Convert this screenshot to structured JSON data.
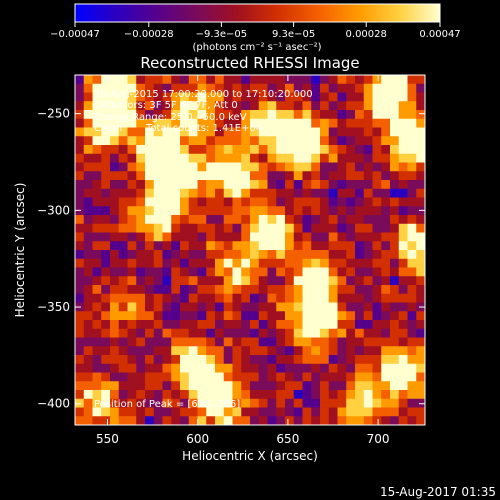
{
  "chart_data": {
    "type": "heatmap",
    "title": "Reconstructed RHESSI Image",
    "xlabel": "Heliocentric X (arcsec)",
    "ylabel": "Heliocentric Y (arcsec)",
    "xlim": [
      532,
      726
    ],
    "ylim": [
      -411,
      -230
    ],
    "x_ticks": [
      550,
      600,
      650,
      700
    ],
    "y_ticks": [
      -400,
      -350,
      -300,
      -250
    ],
    "x_tick_labels": [
      "550",
      "600",
      "650",
      "700"
    ],
    "y_tick_labels": [
      "−400",
      "−350",
      "−300",
      "−250"
    ],
    "colorbar": {
      "min": -0.00047,
      "max": 0.00047,
      "ticks": [
        -0.00047,
        -0.00028,
        -9.3e-05,
        9.3e-05,
        0.00028,
        0.00047
      ],
      "tick_labels": [
        "−0.00047",
        "−0.00028",
        "−9.3e−05",
        "9.3e−05",
        "0.00028",
        "0.00047"
      ],
      "unit_label": "(photons cm⁻² s⁻¹ asec⁻²)",
      "colormap": [
        "#0000ff",
        "#2a00c0",
        "#55008c",
        "#7a0a5a",
        "#a01020",
        "#d23000",
        "#f46000",
        "#ff9a00",
        "#ffd040",
        "#ffffd0"
      ]
    },
    "annotations": {
      "time_range": "26-Aug-2015 17:00:20.000 to 17:10:20.000",
      "detectors": "Detectors: 3F 5F 6F 7F, Att 0",
      "energy_range": "Energy Range: 25.0 - 50.0 keV",
      "clean_label": "Clean",
      "total_counts": "Total counts: 1.41E+04",
      "peak_position": "Position of Peak = [658,-266]"
    },
    "bright_sources": [
      {
        "x": 549,
        "y": -254,
        "level": 0.95
      },
      {
        "x": 555,
        "y": -236,
        "level": 0.75
      },
      {
        "x": 578,
        "y": -268,
        "level": 0.9
      },
      {
        "x": 590,
        "y": -282,
        "level": 0.85
      },
      {
        "x": 578,
        "y": -300,
        "level": 0.8
      },
      {
        "x": 600,
        "y": -248,
        "level": 0.7
      },
      {
        "x": 620,
        "y": -282,
        "level": 0.9
      },
      {
        "x": 640,
        "y": -312,
        "level": 0.85
      },
      {
        "x": 658,
        "y": -266,
        "level": 1.0
      },
      {
        "x": 640,
        "y": -256,
        "level": 0.7
      },
      {
        "x": 665,
        "y": -338,
        "level": 0.85
      },
      {
        "x": 665,
        "y": -358,
        "level": 0.8
      },
      {
        "x": 705,
        "y": -240,
        "level": 0.9
      },
      {
        "x": 718,
        "y": -264,
        "level": 0.85
      },
      {
        "x": 722,
        "y": -320,
        "level": 0.75
      },
      {
        "x": 713,
        "y": -382,
        "level": 0.8
      },
      {
        "x": 692,
        "y": -400,
        "level": 0.7
      },
      {
        "x": 600,
        "y": -382,
        "level": 0.95
      },
      {
        "x": 612,
        "y": -400,
        "level": 0.8
      },
      {
        "x": 545,
        "y": -400,
        "level": 0.55
      },
      {
        "x": 560,
        "y": -350,
        "level": 0.45
      },
      {
        "x": 620,
        "y": -330,
        "level": 0.55
      }
    ]
  },
  "footer": {
    "timestamp": "15-Aug-2017 01:35"
  }
}
